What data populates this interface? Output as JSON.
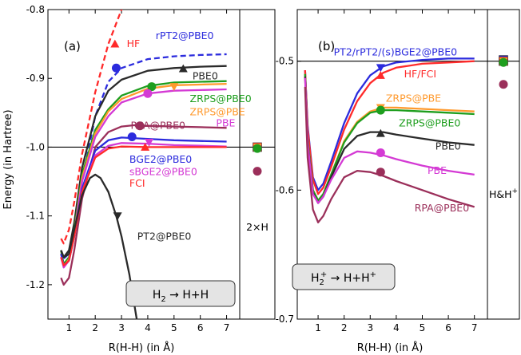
{
  "chart_data": [
    {
      "type": "line",
      "panel_label": "(a)",
      "ylabel": "Energy (in Hartree)",
      "xlabel": "R(H-H) (in Å)",
      "xlim": [
        0.2,
        7.5
      ],
      "ylim": [
        -1.25,
        -0.8
      ],
      "xticks": [
        1,
        2,
        3,
        4,
        5,
        6,
        7
      ],
      "yticks": [
        -0.8,
        -0.9,
        -1.0,
        -1.1,
        -1.2
      ],
      "ytick_labels": [
        "-0.8",
        "-0.9",
        "-1.0",
        "-1.1",
        "-1.2"
      ],
      "reference_line": -1.0,
      "reaction_label": {
        "main": "H",
        "sub": "2",
        "rest": " → H+H"
      },
      "inset_label": "2×H",
      "series": [
        {
          "name": "HF",
          "color": "#ff2a2a",
          "dashed": true,
          "label_at": [
            3.2,
            -0.85
          ],
          "marker": {
            "shape": "triangle-up",
            "x": 2.75,
            "y": -0.85
          },
          "x": [
            0.7,
            0.8,
            1.0,
            1.2,
            1.5,
            2.0,
            2.5,
            3.0,
            3.2
          ],
          "y": [
            -1.133,
            -1.14,
            -1.12,
            -1.08,
            -1.01,
            -0.92,
            -0.85,
            -0.8,
            -0.785
          ]
        },
        {
          "name": "rPT2@PBE0",
          "color": "#2b2bdd",
          "dashed": true,
          "label_at": [
            4.3,
            -0.838
          ],
          "marker": {
            "shape": "circle",
            "x": 2.8,
            "y": -0.885
          },
          "x": [
            0.7,
            0.8,
            1.0,
            1.2,
            1.5,
            2.0,
            2.5,
            3.0,
            4.0,
            5.0,
            6.0,
            7.0
          ],
          "y": [
            -1.15,
            -1.162,
            -1.155,
            -1.12,
            -1.05,
            -0.955,
            -0.905,
            -0.885,
            -0.872,
            -0.868,
            -0.866,
            -0.865
          ]
        },
        {
          "name": "PBE0",
          "color": "#2a2a2a",
          "dashed": false,
          "label_at": [
            5.7,
            -0.897
          ],
          "marker": {
            "shape": "triangle-up",
            "x": 5.35,
            "y": -0.886
          },
          "x": [
            0.7,
            0.8,
            1.0,
            1.2,
            1.5,
            2.0,
            2.5,
            3.0,
            4.0,
            5.0,
            6.0,
            7.0
          ],
          "y": [
            -1.15,
            -1.16,
            -1.15,
            -1.11,
            -1.03,
            -0.955,
            -0.918,
            -0.902,
            -0.889,
            -0.885,
            -0.883,
            -0.882
          ]
        },
        {
          "name": "ZRPS@PBE0",
          "color": "#1e9e1e",
          "dashed": false,
          "label_at": [
            5.6,
            -0.93
          ],
          "marker": {
            "shape": "circle",
            "x": 4.15,
            "y": -0.912
          },
          "x": [
            0.7,
            0.8,
            1.0,
            1.2,
            1.5,
            2.0,
            2.5,
            3.0,
            4.0,
            5.0,
            6.0,
            7.0
          ],
          "y": [
            -1.15,
            -1.17,
            -1.16,
            -1.12,
            -1.04,
            -0.975,
            -0.945,
            -0.925,
            -0.911,
            -0.906,
            -0.905,
            -0.904
          ]
        },
        {
          "name": "ZRPS@PBE",
          "color": "#ff9a2e",
          "dashed": false,
          "label_at": [
            5.6,
            -0.949
          ],
          "marker": {
            "shape": "triangle-down",
            "x": 5.0,
            "y": -0.912
          },
          "x": [
            0.7,
            0.8,
            1.0,
            1.2,
            1.5,
            2.0,
            2.5,
            3.0,
            4.0,
            5.0,
            6.0,
            7.0
          ],
          "y": [
            -1.155,
            -1.173,
            -1.163,
            -1.125,
            -1.045,
            -0.98,
            -0.948,
            -0.93,
            -0.915,
            -0.91,
            -0.909,
            -0.908
          ]
        },
        {
          "name": "PBE",
          "color": "#d43ad4",
          "dashed": false,
          "label_at": [
            6.6,
            -0.965
          ],
          "marker": {
            "shape": "circle",
            "x": 4.0,
            "y": -0.922
          },
          "x": [
            0.7,
            0.8,
            1.0,
            1.2,
            1.5,
            2.0,
            2.5,
            3.0,
            4.0,
            5.0,
            6.0,
            7.0
          ],
          "y": [
            -1.16,
            -1.175,
            -1.165,
            -1.125,
            -1.05,
            -0.985,
            -0.955,
            -0.935,
            -0.922,
            -0.918,
            -0.917,
            -0.916
          ]
        },
        {
          "name": "RPA@PBE0",
          "color": "#9b2f5a",
          "dashed": false,
          "label_at": [
            3.35,
            -0.969
          ],
          "marker": {
            "shape": "circle",
            "x": 3.7,
            "y": -0.969
          },
          "x": [
            0.7,
            0.8,
            1.0,
            1.2,
            1.5,
            2.0,
            2.5,
            3.0,
            3.5,
            4.0,
            5.0,
            6.0,
            7.0
          ],
          "y": [
            -1.19,
            -1.2,
            -1.19,
            -1.15,
            -1.075,
            -1.0,
            -0.978,
            -0.97,
            -0.968,
            -0.969,
            -0.97,
            -0.971,
            -0.972
          ]
        },
        {
          "name": "BGE2@PBE0",
          "color": "#2b2bdd",
          "dashed": false,
          "label_at": [
            3.3,
            -1.018
          ],
          "marker": {
            "shape": "circle",
            "x": 3.4,
            "y": -0.985
          },
          "x": [
            0.7,
            0.8,
            1.0,
            1.2,
            1.5,
            2.0,
            2.5,
            3.0,
            4.0,
            5.0,
            6.0,
            7.0
          ],
          "y": [
            -1.155,
            -1.172,
            -1.165,
            -1.13,
            -1.06,
            -1.005,
            -0.99,
            -0.986,
            -0.988,
            -0.99,
            -0.991,
            -0.992
          ]
        },
        {
          "name": "sBGE2@PBE0",
          "color": "#d43ad4",
          "dashed": false,
          "label_at": [
            3.3,
            -1.036
          ],
          "marker": {
            "shape": "triangle-down",
            "x": 4.05,
            "y": -0.993
          },
          "x": [
            0.7,
            0.8,
            1.0,
            1.2,
            1.5,
            2.0,
            2.5,
            3.0,
            4.0,
            5.0,
            6.0,
            7.0
          ],
          "y": [
            -1.16,
            -1.172,
            -1.165,
            -1.13,
            -1.065,
            -1.012,
            -0.998,
            -0.994,
            -0.995,
            -0.997,
            -0.998,
            -0.999
          ]
        },
        {
          "name": "FCI",
          "color": "#ff2a2a",
          "dashed": false,
          "label_at": [
            3.3,
            -1.053
          ],
          "marker": {
            "shape": "triangle-up",
            "x": 3.9,
            "y": -1.0
          },
          "x": [
            0.7,
            0.8,
            1.0,
            1.2,
            1.5,
            2.0,
            2.5,
            3.0,
            4.0,
            5.0,
            6.0,
            7.0
          ],
          "y": [
            -1.16,
            -1.172,
            -1.165,
            -1.13,
            -1.065,
            -1.015,
            -1.002,
            -0.999,
            -1.0,
            -1.0,
            -1.0,
            -1.0
          ]
        },
        {
          "name": "PT2@PBE0",
          "color": "#2a2a2a",
          "dashed": false,
          "label_at": [
            3.6,
            -1.13
          ],
          "marker": {
            "shape": "triangle-down",
            "x": 2.85,
            "y": -1.1
          },
          "x": [
            0.7,
            0.8,
            1.0,
            1.2,
            1.5,
            1.8,
            2.0,
            2.2,
            2.5,
            2.8,
            3.0,
            3.3,
            3.6
          ],
          "y": [
            -1.15,
            -1.16,
            -1.155,
            -1.12,
            -1.07,
            -1.045,
            -1.04,
            -1.045,
            -1.065,
            -1.1,
            -1.13,
            -1.185,
            -1.255
          ]
        }
      ],
      "inset_markers": [
        {
          "shape": "square",
          "color": "#ff2a2a",
          "y": -1.0
        },
        {
          "shape": "triangle-down",
          "color": "#ff9a2e",
          "y": -1.0
        },
        {
          "shape": "circle",
          "color": "#1e9e1e",
          "y": -1.002
        },
        {
          "shape": "circle",
          "color": "#9b2f5a",
          "y": -1.035
        }
      ]
    },
    {
      "type": "line",
      "panel_label": "(b)",
      "xlabel": "R(H-H) (in Å)",
      "xlim": [
        0.2,
        7.5
      ],
      "ylim": [
        -0.7,
        -0.46
      ],
      "xticks": [
        1,
        2,
        3,
        4,
        5,
        6,
        7
      ],
      "yticks": [
        -0.5,
        -0.6,
        -0.7
      ],
      "ytick_labels": [
        "-0.5",
        "-0.6",
        "-0.7"
      ],
      "reference_line": -0.5,
      "reaction_label": {
        "main": "H",
        "sub": "2",
        "sup": "+",
        "rest": " → H+H",
        "rest_sup": "+"
      },
      "inset_label": "H&H",
      "inset_label_sup": "+",
      "series": [
        {
          "name": "PT2/rPT2/(s)BGE2@PBE0",
          "color": "#2b2bdd",
          "dashed": false,
          "label_at": [
            1.6,
            -0.493
          ],
          "marker": {
            "shape": "triangle-down",
            "x": 3.4,
            "y": -0.505
          },
          "x": [
            0.5,
            0.6,
            0.8,
            1.0,
            1.2,
            1.5,
            2.0,
            2.5,
            3.0,
            3.5,
            4.0,
            5.0,
            6.0,
            7.0
          ],
          "y": [
            -0.507,
            -0.55,
            -0.59,
            -0.6,
            -0.595,
            -0.578,
            -0.548,
            -0.525,
            -0.511,
            -0.504,
            -0.501,
            -0.499,
            -0.498,
            -0.498
          ]
        },
        {
          "name": "HF/FCI",
          "color": "#ff2a2a",
          "dashed": false,
          "label_at": [
            4.3,
            -0.51
          ],
          "marker": {
            "shape": "triangle-up",
            "x": 3.4,
            "y": -0.511
          },
          "x": [
            0.5,
            0.6,
            0.8,
            1.0,
            1.2,
            1.5,
            2.0,
            2.5,
            3.0,
            3.5,
            4.0,
            5.0,
            6.0,
            7.0
          ],
          "y": [
            -0.507,
            -0.552,
            -0.592,
            -0.603,
            -0.598,
            -0.582,
            -0.553,
            -0.531,
            -0.517,
            -0.509,
            -0.505,
            -0.502,
            -0.501,
            -0.5
          ]
        },
        {
          "name": "ZRPS@PBE",
          "color": "#ff9a2e",
          "dashed": false,
          "label_at": [
            3.6,
            -0.529
          ],
          "marker": {
            "shape": "triangle-down",
            "x": 3.4,
            "y": -0.536
          },
          "x": [
            0.5,
            0.6,
            0.8,
            1.0,
            1.2,
            1.5,
            2.0,
            2.5,
            3.0,
            3.5,
            4.0,
            5.0,
            6.0,
            7.0
          ],
          "y": [
            -0.51,
            -0.56,
            -0.6,
            -0.608,
            -0.603,
            -0.588,
            -0.562,
            -0.547,
            -0.539,
            -0.536,
            -0.536,
            -0.537,
            -0.538,
            -0.539
          ]
        },
        {
          "name": "ZRPS@PBE0",
          "color": "#1e9e1e",
          "dashed": false,
          "label_at": [
            4.1,
            -0.548
          ],
          "marker": {
            "shape": "circle",
            "x": 3.4,
            "y": -0.538
          },
          "x": [
            0.5,
            0.6,
            0.8,
            1.0,
            1.2,
            1.5,
            2.0,
            2.5,
            3.0,
            3.5,
            4.0,
            5.0,
            6.0,
            7.0
          ],
          "y": [
            -0.51,
            -0.56,
            -0.6,
            -0.608,
            -0.603,
            -0.588,
            -0.563,
            -0.548,
            -0.54,
            -0.538,
            -0.538,
            -0.539,
            -0.54,
            -0.541
          ]
        },
        {
          "name": "PBE0",
          "color": "#2a2a2a",
          "dashed": false,
          "label_at": [
            5.5,
            -0.566
          ],
          "marker": {
            "shape": "triangle-up",
            "x": 3.4,
            "y": -0.556
          },
          "x": [
            0.5,
            0.6,
            0.8,
            1.0,
            1.2,
            1.5,
            2.0,
            2.5,
            3.0,
            3.5,
            4.0,
            5.0,
            6.0,
            7.0
          ],
          "y": [
            -0.512,
            -0.562,
            -0.602,
            -0.61,
            -0.605,
            -0.59,
            -0.568,
            -0.558,
            -0.555,
            -0.555,
            -0.557,
            -0.56,
            -0.563,
            -0.565
          ]
        },
        {
          "name": "PBE",
          "color": "#d43ad4",
          "dashed": false,
          "label_at": [
            5.2,
            -0.585
          ],
          "marker": {
            "shape": "circle",
            "x": 3.4,
            "y": -0.571
          },
          "x": [
            0.5,
            0.6,
            0.8,
            1.0,
            1.2,
            1.5,
            2.0,
            2.5,
            3.0,
            3.5,
            4.0,
            5.0,
            6.0,
            7.0
          ],
          "y": [
            -0.513,
            -0.563,
            -0.603,
            -0.61,
            -0.605,
            -0.592,
            -0.575,
            -0.57,
            -0.571,
            -0.573,
            -0.576,
            -0.581,
            -0.585,
            -0.588
          ]
        },
        {
          "name": "RPA@PBE0",
          "color": "#9b2f5a",
          "dashed": false,
          "label_at": [
            4.7,
            -0.614
          ],
          "marker": {
            "shape": "circle",
            "x": 3.4,
            "y": -0.586
          },
          "x": [
            0.5,
            0.6,
            0.8,
            1.0,
            1.2,
            1.5,
            2.0,
            2.5,
            3.0,
            3.5,
            4.0,
            5.0,
            6.0,
            7.0
          ],
          "y": [
            -0.52,
            -0.575,
            -0.615,
            -0.625,
            -0.62,
            -0.607,
            -0.59,
            -0.585,
            -0.586,
            -0.589,
            -0.593,
            -0.6,
            -0.607,
            -0.613
          ]
        }
      ],
      "inset_markers": [
        {
          "shape": "square",
          "color": "#2b2bdd",
          "y": -0.499
        },
        {
          "shape": "square",
          "color": "#ff2a2a",
          "y": -0.5
        },
        {
          "shape": "triangle-down",
          "color": "#ff9a2e",
          "y": -0.5
        },
        {
          "shape": "circle",
          "color": "#1e9e1e",
          "y": -0.501
        },
        {
          "shape": "circle",
          "color": "#9b2f5a",
          "y": -0.518
        }
      ]
    }
  ]
}
